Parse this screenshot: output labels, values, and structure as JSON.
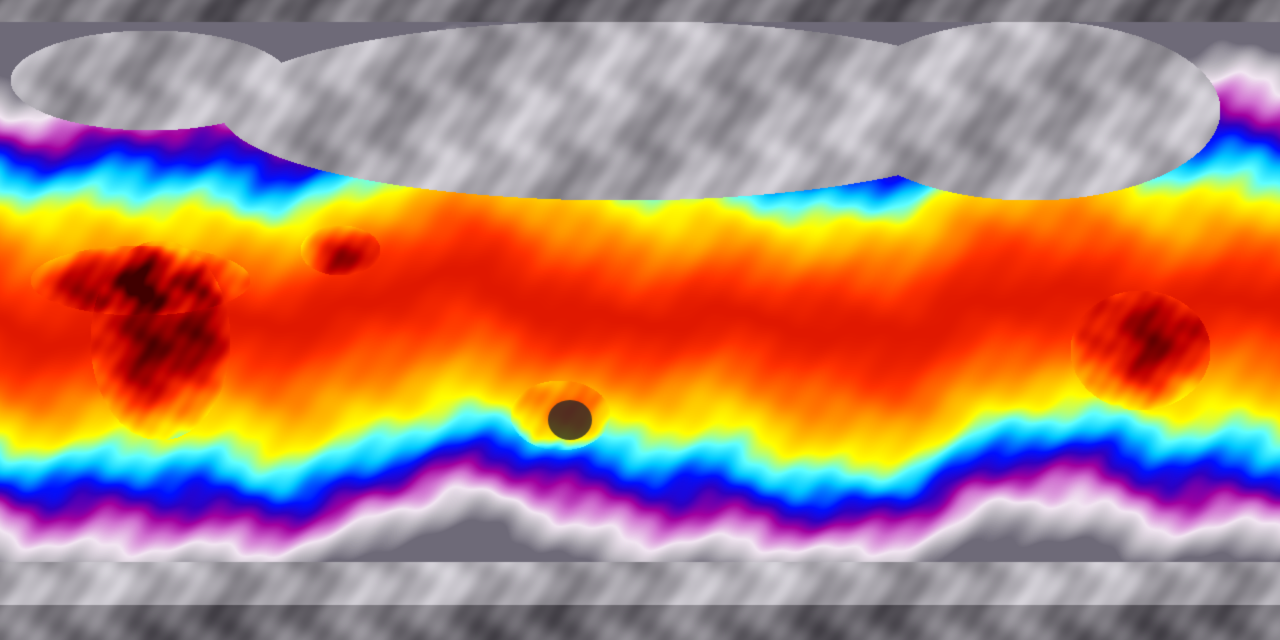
{
  "map": {
    "projection": "equirectangular",
    "variable_colormap": [
      "#6e6a78",
      "#b8b4bc",
      "#f2e6f2",
      "#d070d0",
      "#a000a0",
      "#3000c0",
      "#0010ff",
      "#00c8ff",
      "#60ffff",
      "#ffff00",
      "#ffa000",
      "#ff3000",
      "#c00000",
      "#400000",
      "#303030"
    ]
  }
}
